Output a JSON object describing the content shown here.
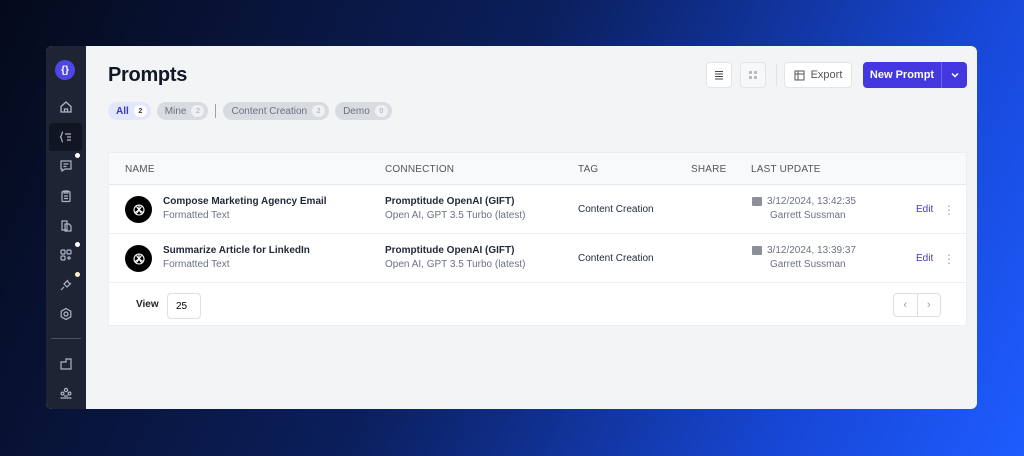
{
  "sidebar": {
    "logo": "{}",
    "items": [
      "home-icon",
      "prompts-icon",
      "chat-icon",
      "clipboard-icon",
      "documents-icon",
      "apps-icon",
      "plug-icon",
      "gear-icon",
      "folder-icon",
      "team-icon"
    ]
  },
  "header": {
    "title": "Prompts",
    "export_label": "Export",
    "new_prompt_label": "New Prompt"
  },
  "filters": [
    {
      "label": "All",
      "count": "2"
    },
    {
      "label": "Mine",
      "count": "2"
    },
    {
      "label": "Content Creation",
      "count": "2"
    },
    {
      "label": "Demo",
      "count": "0"
    }
  ],
  "table": {
    "columns": [
      "NAME",
      "CONNECTION",
      "TAG",
      "SHARE",
      "LAST UPDATE"
    ],
    "rows": [
      {
        "name": "Compose Marketing Agency Email",
        "type": "Formatted Text",
        "connection": "Promptitude OpenAI (GIFT)",
        "model": "Open AI, GPT 3.5 Turbo (latest)",
        "tag": "Content Creation",
        "date": "3/12/2024, 13:42:35",
        "user": "Garrett Sussman",
        "action": "Edit"
      },
      {
        "name": "Summarize Article for LinkedIn",
        "type": "Formatted Text",
        "connection": "Promptitude OpenAI (GIFT)",
        "model": "Open AI, GPT 3.5 Turbo (latest)",
        "tag": "Content Creation",
        "date": "3/12/2024, 13:39:37",
        "user": "Garrett Sussman",
        "action": "Edit"
      }
    ]
  },
  "footer": {
    "view_label": "View",
    "page_size": "25"
  },
  "colors": {
    "accent": "#4338e0",
    "sidebar": "#1e2433"
  }
}
